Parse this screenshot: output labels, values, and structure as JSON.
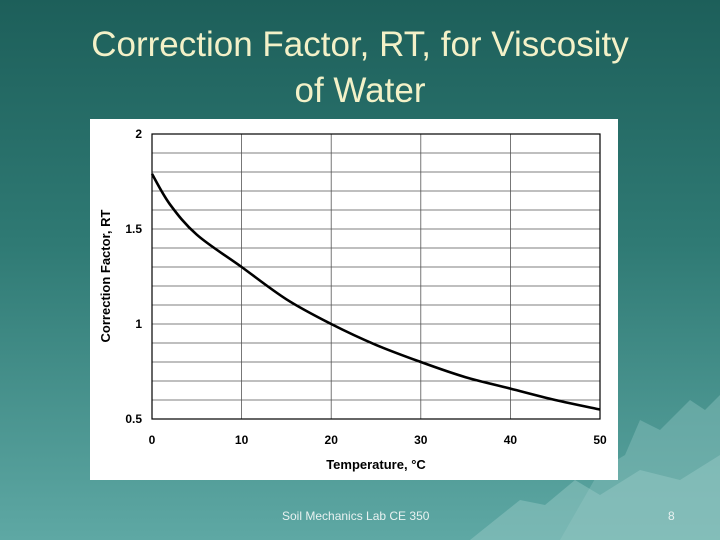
{
  "slide": {
    "title_line1": "Correction Factor, RT, for Viscosity",
    "title_line2": "of Water",
    "footer": "Soil Mechanics Lab CE 350",
    "page_number": "8",
    "title_color": "#f3f1c8",
    "background_color": "#2f7a74"
  },
  "chart_data": {
    "type": "line",
    "xlabel": "Temperature, °C",
    "ylabel": "Correction Factor, RT",
    "xlim": [
      0,
      50
    ],
    "ylim": [
      0.5,
      2
    ],
    "x_ticks": [
      "0",
      "10",
      "20",
      "30",
      "40",
      "50"
    ],
    "y_ticks": [
      "0.5",
      "1",
      "1.5",
      "2"
    ],
    "x_tick_values": [
      0,
      10,
      20,
      30,
      40,
      50
    ],
    "y_tick_values": [
      0.5,
      1,
      1.5,
      2
    ],
    "x_minor_step": 10,
    "y_minor_step": 0.1,
    "grid": true,
    "series": [
      {
        "color": "#000000",
        "x": [
          0,
          2,
          5,
          10,
          15,
          20,
          25,
          30,
          35,
          40,
          45,
          50
        ],
        "values": [
          1.79,
          1.63,
          1.47,
          1.3,
          1.13,
          1.0,
          0.89,
          0.8,
          0.72,
          0.66,
          0.6,
          0.55
        ]
      }
    ]
  }
}
